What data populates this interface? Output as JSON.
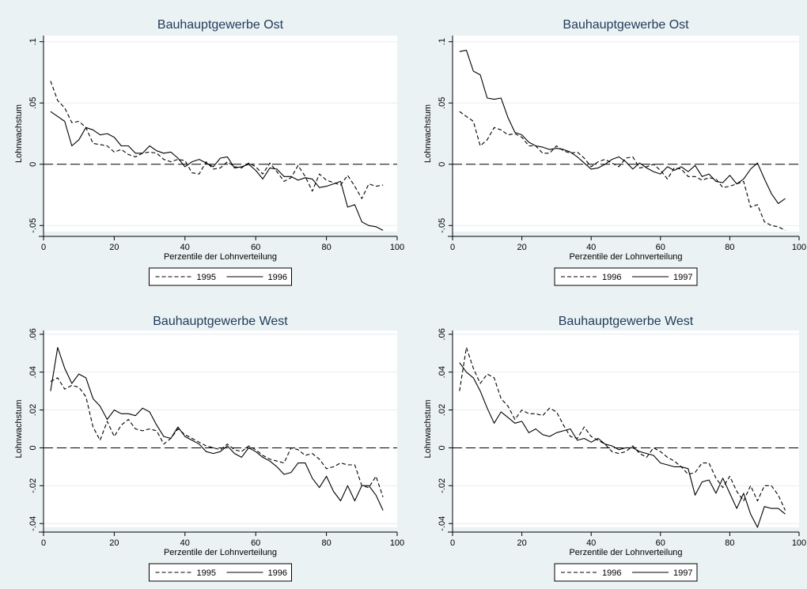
{
  "page": {
    "background": "#eaf2f3",
    "plot_background": "#ffffff"
  },
  "chart_data": [
    {
      "type": "line",
      "title": "Bauhauptgewerbe Ost",
      "xlabel": "Perzentile der Lohnverteilung",
      "ylabel": "Lohnwachstum",
      "xlim": [
        0,
        100
      ],
      "ylim": [
        -0.055,
        0.105
      ],
      "x_ticks": [
        0,
        20,
        40,
        60,
        80,
        100
      ],
      "y_ticks": [
        -0.05,
        0,
        0.05,
        0.1
      ],
      "y_tick_labels": [
        "-.05",
        "0",
        ".05",
        ".1"
      ],
      "reference_line": 0,
      "grid": true,
      "legend_position": "bottom",
      "x": [
        2,
        4,
        6,
        8,
        10,
        12,
        14,
        16,
        18,
        20,
        22,
        24,
        26,
        28,
        30,
        32,
        34,
        36,
        38,
        40,
        42,
        44,
        46,
        48,
        50,
        52,
        54,
        56,
        58,
        60,
        62,
        64,
        66,
        68,
        70,
        72,
        74,
        76,
        78,
        80,
        82,
        84,
        86,
        88,
        90,
        92,
        94,
        96
      ],
      "series": [
        {
          "name": "1995",
          "style": "dashed",
          "values": [
            0.068,
            0.052,
            0.046,
            0.034,
            0.035,
            0.03,
            0.017,
            0.016,
            0.015,
            0.01,
            0.012,
            0.008,
            0.006,
            0.009,
            0.01,
            0.009,
            0.004,
            0.002,
            0.004,
            0.003,
            -0.007,
            -0.008,
            0.002,
            -0.004,
            -0.003,
            0.002,
            -0.002,
            -0.003,
            0.001,
            -0.002,
            -0.008,
            0.001,
            -0.006,
            -0.014,
            -0.011,
            -0.001,
            -0.01,
            -0.022,
            -0.008,
            -0.013,
            -0.015,
            -0.017,
            -0.009,
            -0.018,
            -0.028,
            -0.016,
            -0.018,
            -0.017
          ]
        },
        {
          "name": "1996",
          "style": "solid",
          "values": [
            0.043,
            0.039,
            0.035,
            0.015,
            0.02,
            0.03,
            0.028,
            0.024,
            0.025,
            0.022,
            0.015,
            0.015,
            0.009,
            0.009,
            0.015,
            0.011,
            0.009,
            0.01,
            0.005,
            -0.002,
            0.002,
            0.004,
            0.001,
            -0.002,
            0.005,
            0.006,
            -0.003,
            -0.002,
            0.0,
            -0.005,
            -0.012,
            -0.003,
            -0.004,
            -0.01,
            -0.01,
            -0.013,
            -0.011,
            -0.012,
            -0.019,
            -0.018,
            -0.016,
            -0.014,
            -0.035,
            -0.033,
            -0.047,
            -0.05,
            -0.051,
            -0.054
          ]
        }
      ]
    },
    {
      "type": "line",
      "title": "Bauhauptgewerbe Ost",
      "xlabel": "Perzentile der Lohnverteilung",
      "ylabel": "Lohnwachstum",
      "xlim": [
        0,
        100
      ],
      "ylim": [
        -0.055,
        0.105
      ],
      "x_ticks": [
        0,
        20,
        40,
        60,
        80,
        100
      ],
      "y_ticks": [
        -0.05,
        0,
        0.05,
        0.1
      ],
      "y_tick_labels": [
        "-.05",
        "0",
        ".05",
        ".1"
      ],
      "reference_line": 0,
      "grid": true,
      "legend_position": "bottom",
      "x": [
        2,
        4,
        6,
        8,
        10,
        12,
        14,
        16,
        18,
        20,
        22,
        24,
        26,
        28,
        30,
        32,
        34,
        36,
        38,
        40,
        42,
        44,
        46,
        48,
        50,
        52,
        54,
        56,
        58,
        60,
        62,
        64,
        66,
        68,
        70,
        72,
        74,
        76,
        78,
        80,
        82,
        84,
        86,
        88,
        90,
        92,
        94,
        96
      ],
      "series": [
        {
          "name": "1996",
          "style": "dashed",
          "values": [
            0.043,
            0.039,
            0.035,
            0.015,
            0.02,
            0.03,
            0.028,
            0.024,
            0.025,
            0.022,
            0.015,
            0.015,
            0.009,
            0.009,
            0.015,
            0.011,
            0.009,
            0.01,
            0.005,
            -0.002,
            0.002,
            0.004,
            0.001,
            -0.002,
            0.005,
            0.006,
            -0.003,
            -0.002,
            0.0,
            -0.005,
            -0.012,
            -0.003,
            -0.004,
            -0.01,
            -0.01,
            -0.013,
            -0.011,
            -0.012,
            -0.019,
            -0.018,
            -0.016,
            -0.014,
            -0.035,
            -0.033,
            -0.047,
            -0.05,
            -0.051,
            -0.054
          ]
        },
        {
          "name": "1997",
          "style": "solid",
          "values": [
            0.092,
            0.093,
            0.076,
            0.073,
            0.054,
            0.053,
            0.054,
            0.038,
            0.026,
            0.024,
            0.018,
            0.015,
            0.014,
            0.012,
            0.013,
            0.012,
            0.01,
            0.006,
            0.001,
            -0.004,
            -0.003,
            0.0,
            0.004,
            0.006,
            0.002,
            -0.004,
            0.001,
            -0.003,
            -0.006,
            -0.008,
            -0.002,
            -0.005,
            -0.002,
            -0.006,
            -0.001,
            -0.01,
            -0.008,
            -0.014,
            -0.015,
            -0.009,
            -0.016,
            -0.012,
            -0.004,
            0.001,
            -0.012,
            -0.024,
            -0.032,
            -0.028
          ]
        }
      ]
    },
    {
      "type": "line",
      "title": "Bauhauptgewerbe West",
      "xlabel": "Perzentile der Lohnverteilung",
      "ylabel": "Lohnwachstum",
      "xlim": [
        0,
        100
      ],
      "ylim": [
        -0.042,
        0.062
      ],
      "x_ticks": [
        0,
        20,
        40,
        60,
        80,
        100
      ],
      "y_ticks": [
        -0.04,
        -0.02,
        0,
        0.02,
        0.04,
        0.06
      ],
      "y_tick_labels": [
        "-.04",
        "-.02",
        "0",
        ".02",
        ".04",
        ".06"
      ],
      "reference_line": 0,
      "grid": true,
      "legend_position": "bottom",
      "x": [
        2,
        4,
        6,
        8,
        10,
        12,
        14,
        16,
        18,
        20,
        22,
        24,
        26,
        28,
        30,
        32,
        34,
        36,
        38,
        40,
        42,
        44,
        46,
        48,
        50,
        52,
        54,
        56,
        58,
        60,
        62,
        64,
        66,
        68,
        70,
        72,
        74,
        76,
        78,
        80,
        82,
        84,
        86,
        88,
        90,
        92,
        94,
        96
      ],
      "series": [
        {
          "name": "1995",
          "style": "dashed",
          "values": [
            0.035,
            0.037,
            0.031,
            0.033,
            0.032,
            0.027,
            0.011,
            0.004,
            0.014,
            0.006,
            0.012,
            0.015,
            0.01,
            0.009,
            0.01,
            0.009,
            0.002,
            0.005,
            0.01,
            0.007,
            0.005,
            0.003,
            0.001,
            0.0,
            -0.001,
            0.002,
            -0.001,
            -0.002,
            0.001,
            -0.001,
            -0.004,
            -0.006,
            -0.007,
            -0.008,
            0.0,
            -0.001,
            -0.004,
            -0.003,
            -0.006,
            -0.011,
            -0.01,
            -0.008,
            -0.009,
            -0.009,
            -0.02,
            -0.021,
            -0.015,
            -0.026
          ]
        },
        {
          "name": "1996",
          "style": "solid",
          "values": [
            0.03,
            0.053,
            0.042,
            0.034,
            0.039,
            0.037,
            0.026,
            0.022,
            0.015,
            0.02,
            0.018,
            0.018,
            0.017,
            0.021,
            0.019,
            0.012,
            0.006,
            0.005,
            0.011,
            0.006,
            0.004,
            0.002,
            -0.002,
            -0.003,
            -0.002,
            0.001,
            -0.003,
            -0.005,
            0.0,
            -0.002,
            -0.005,
            -0.007,
            -0.01,
            -0.014,
            -0.013,
            -0.008,
            -0.008,
            -0.016,
            -0.021,
            -0.015,
            -0.023,
            -0.028,
            -0.02,
            -0.028,
            -0.02,
            -0.02,
            -0.025,
            -0.033
          ]
        }
      ]
    },
    {
      "type": "line",
      "title": "Bauhauptgewerbe West",
      "xlabel": "Perzentile der Lohnverteilung",
      "ylabel": "Lohnwachstum",
      "xlim": [
        0,
        100
      ],
      "ylim": [
        -0.042,
        0.062
      ],
      "x_ticks": [
        0,
        20,
        40,
        60,
        80,
        100
      ],
      "y_ticks": [
        -0.04,
        -0.02,
        0,
        0.02,
        0.04,
        0.06
      ],
      "y_tick_labels": [
        "-.04",
        "-.02",
        "0",
        ".02",
        ".04",
        ".06"
      ],
      "reference_line": 0,
      "grid": true,
      "legend_position": "bottom",
      "x": [
        2,
        4,
        6,
        8,
        10,
        12,
        14,
        16,
        18,
        20,
        22,
        24,
        26,
        28,
        30,
        32,
        34,
        36,
        38,
        40,
        42,
        44,
        46,
        48,
        50,
        52,
        54,
        56,
        58,
        60,
        62,
        64,
        66,
        68,
        70,
        72,
        74,
        76,
        78,
        80,
        82,
        84,
        86,
        88,
        90,
        92,
        94,
        96
      ],
      "series": [
        {
          "name": "1996",
          "style": "dashed",
          "values": [
            0.03,
            0.053,
            0.042,
            0.034,
            0.039,
            0.037,
            0.026,
            0.022,
            0.015,
            0.02,
            0.018,
            0.018,
            0.017,
            0.021,
            0.019,
            0.012,
            0.006,
            0.005,
            0.011,
            0.006,
            0.004,
            0.002,
            -0.002,
            -0.003,
            -0.002,
            0.001,
            -0.003,
            -0.005,
            0.0,
            -0.002,
            -0.005,
            -0.007,
            -0.01,
            -0.014,
            -0.013,
            -0.008,
            -0.008,
            -0.016,
            -0.021,
            -0.015,
            -0.023,
            -0.028,
            -0.02,
            -0.028,
            -0.02,
            -0.02,
            -0.025,
            -0.033
          ]
        },
        {
          "name": "1997",
          "style": "solid",
          "values": [
            0.045,
            0.04,
            0.037,
            0.03,
            0.021,
            0.013,
            0.019,
            0.016,
            0.013,
            0.014,
            0.008,
            0.01,
            0.007,
            0.006,
            0.008,
            0.009,
            0.01,
            0.004,
            0.005,
            0.003,
            0.005,
            0.002,
            0.001,
            -0.001,
            0.0,
            0.0,
            -0.002,
            -0.003,
            -0.004,
            -0.008,
            -0.009,
            -0.01,
            -0.01,
            -0.011,
            -0.025,
            -0.018,
            -0.017,
            -0.024,
            -0.016,
            -0.024,
            -0.032,
            -0.024,
            -0.035,
            -0.042,
            -0.031,
            -0.032,
            -0.032,
            -0.035
          ]
        }
      ]
    }
  ]
}
